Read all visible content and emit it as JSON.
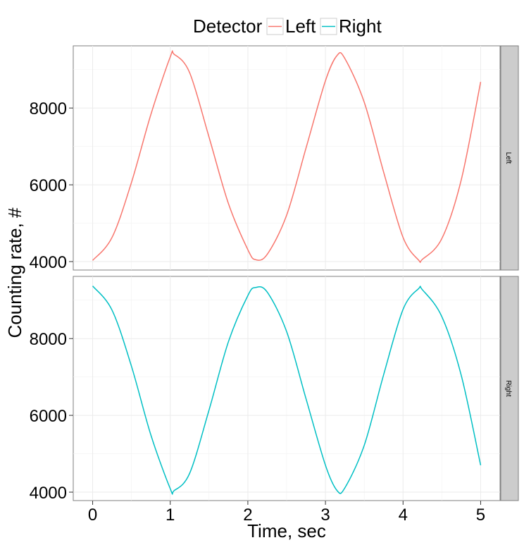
{
  "chart_data": {
    "type": "line",
    "legend": {
      "title": "Detector",
      "position": "top",
      "entries": [
        {
          "label": "Left",
          "color": "#F8766D"
        },
        {
          "label": "Right",
          "color": "#00BFC4"
        }
      ]
    },
    "xlabel": "Time, sec",
    "ylabel": "Counting rate, #",
    "xlim": [
      -0.25,
      5.25
    ],
    "ylim": [
      3780,
      9620
    ],
    "x_ticks": [
      "0",
      "1",
      "2",
      "3",
      "4",
      "5"
    ],
    "x_tick_values": [
      0,
      1,
      2,
      3,
      4,
      5
    ],
    "y_ticks": [
      "4000",
      "6000",
      "8000"
    ],
    "y_tick_values": [
      4000,
      6000,
      8000
    ],
    "grid": true,
    "panels": [
      {
        "strip_label": "Left",
        "series": [
          {
            "name": "Left",
            "color": "#F8766D",
            "x": [
              0,
              0.25,
              0.5,
              0.75,
              1.0,
              1.05,
              1.25,
              1.5,
              1.75,
              2.0,
              2.1,
              2.25,
              2.5,
              2.75,
              3.0,
              3.15,
              3.25,
              3.5,
              3.75,
              4.0,
              4.2,
              4.25,
              4.5,
              4.75,
              5.0
            ],
            "y": [
              4030,
              4630,
              6060,
              7830,
              9330,
              9400,
              8920,
              7240,
              5510,
              4310,
              4050,
              4190,
              5210,
              6960,
              8710,
              9370,
              9290,
              8150,
              6330,
              4630,
              4040,
              4060,
              4600,
              6130,
              8680
            ]
          }
        ]
      },
      {
        "strip_label": "Right",
        "series": [
          {
            "name": "Right",
            "color": "#00BFC4",
            "x": [
              0,
              0.25,
              0.5,
              0.75,
              1.0,
              1.05,
              1.25,
              1.5,
              1.75,
              2.0,
              2.1,
              2.25,
              2.5,
              2.75,
              3.0,
              3.15,
              3.25,
              3.5,
              3.75,
              4.0,
              4.2,
              4.25,
              4.5,
              4.75,
              5.0
            ],
            "y": [
              9370,
              8740,
              7280,
              5490,
              4090,
              4040,
              4490,
              6140,
              7920,
              9120,
              9330,
              9210,
              8180,
              6430,
              4700,
              4040,
              4110,
              5220,
              7060,
              8760,
              9300,
              9270,
              8570,
              7040,
              4700
            ]
          }
        ]
      }
    ]
  }
}
